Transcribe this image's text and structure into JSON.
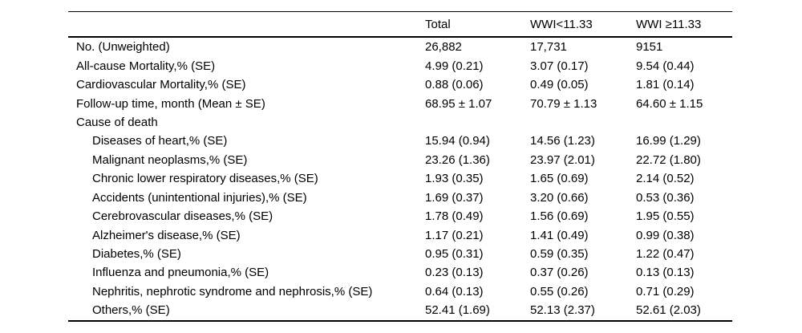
{
  "table": {
    "columns": [
      "",
      "Total",
      "WWI<11.33",
      "WWI ≥11.33"
    ],
    "rows": [
      {
        "label": "No. (Unweighted)",
        "indent": false,
        "values": [
          "26,882",
          "17,731",
          "9151"
        ]
      },
      {
        "label": "All-cause Mortality,% (SE)",
        "indent": false,
        "values": [
          "4.99 (0.21)",
          "3.07 (0.17)",
          "9.54 (0.44)"
        ]
      },
      {
        "label": "Cardiovascular Mortality,% (SE)",
        "indent": false,
        "values": [
          "0.88 (0.06)",
          "0.49 (0.05)",
          "1.81 (0.14)"
        ]
      },
      {
        "label": "Follow-up time, month (Mean ± SE)",
        "indent": false,
        "values": [
          "68.95 ± 1.07",
          "70.79 ± 1.13",
          "64.60 ± 1.15"
        ]
      },
      {
        "label": "Cause of death",
        "indent": false,
        "values": [
          "",
          "",
          ""
        ]
      },
      {
        "label": "Diseases of heart,% (SE)",
        "indent": true,
        "values": [
          "15.94 (0.94)",
          "14.56 (1.23)",
          "16.99 (1.29)"
        ]
      },
      {
        "label": "Malignant neoplasms,% (SE)",
        "indent": true,
        "values": [
          "23.26 (1.36)",
          "23.97 (2.01)",
          "22.72 (1.80)"
        ]
      },
      {
        "label": "Chronic lower respiratory diseases,% (SE)",
        "indent": true,
        "values": [
          "1.93 (0.35)",
          "1.65 (0.69)",
          "2.14 (0.52)"
        ]
      },
      {
        "label": "Accidents (unintentional injuries),% (SE)",
        "indent": true,
        "values": [
          "1.69 (0.37)",
          "3.20 (0.66)",
          "0.53 (0.36)"
        ]
      },
      {
        "label": "Cerebrovascular diseases,% (SE)",
        "indent": true,
        "values": [
          "1.78 (0.49)",
          "1.56 (0.69)",
          "1.95 (0.55)"
        ]
      },
      {
        "label": "Alzheimer's disease,% (SE)",
        "indent": true,
        "values": [
          "1.17 (0.21)",
          "1.41 (0.49)",
          "0.99 (0.38)"
        ]
      },
      {
        "label": "Diabetes,% (SE)",
        "indent": true,
        "values": [
          "0.95 (0.31)",
          "0.59 (0.35)",
          "1.22 (0.47)"
        ]
      },
      {
        "label": "Influenza and pneumonia,% (SE)",
        "indent": true,
        "values": [
          "0.23 (0.13)",
          "0.37 (0.26)",
          "0.13 (0.13)"
        ]
      },
      {
        "label": "Nephritis, nephrotic syndrome and nephrosis,% (SE)",
        "indent": true,
        "values": [
          "0.64 (0.13)",
          "0.55 (0.26)",
          "0.71 (0.29)"
        ]
      },
      {
        "label": "Others,% (SE)",
        "indent": true,
        "values": [
          "52.41 (1.69)",
          "52.13 (2.37)",
          "52.61 (2.03)"
        ]
      }
    ]
  }
}
